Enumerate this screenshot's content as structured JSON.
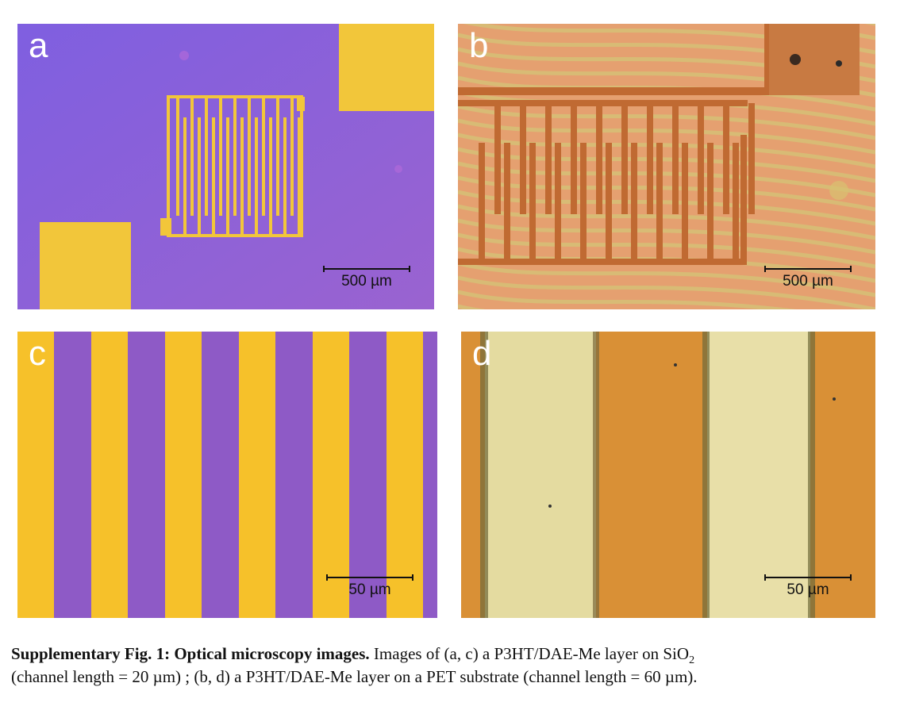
{
  "panels": {
    "a": {
      "label": "a",
      "scale": "500 µm"
    },
    "b": {
      "label": "b",
      "scale": "500 µm"
    },
    "c": {
      "label": "c",
      "scale": "50 µm"
    },
    "d": {
      "label": "d",
      "scale": "50 µm"
    }
  },
  "caption": {
    "title": "Supplementary Fig. 1: Optical microscopy images.",
    "line1_pre": " Images of (a, c) a P3HT/DAE-Me layer on SiO",
    "line1_sub": "2",
    "line2": "(channel length = 20 µm) ; (b, d) a P3HT/DAE-Me layer on a PET substrate (channel length = 60 µm)."
  },
  "colors": {
    "purple": "#8a5fd6",
    "gold": "#f4c430",
    "orange": "#d98a3a",
    "pale": "#e3d9a0"
  }
}
